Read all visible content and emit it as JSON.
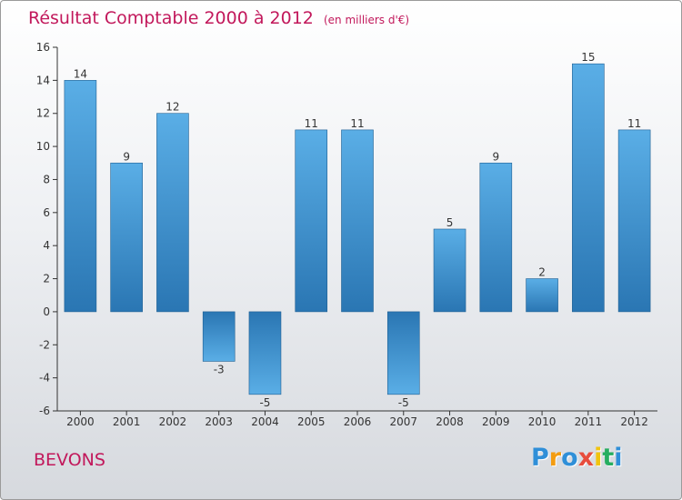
{
  "header": {
    "title": "Résultat Comptable 2000 à 2012",
    "subtitle": "(en milliers d'€)"
  },
  "footer": {
    "place": "BEVONS",
    "brand": "Proxiti",
    "brand_letters": [
      "P",
      "r",
      "o",
      "x",
      "i",
      "t",
      "i"
    ],
    "brand_colors": [
      "#2f8fd8",
      "#f39c12",
      "#2f8fd8",
      "#e74c3c",
      "#f1c40f",
      "#27ae60",
      "#2f8fd8"
    ]
  },
  "colors": {
    "title": "#c2185b",
    "bar_light": "#5aaee6",
    "bar_dark": "#2a7ab8",
    "axis": "#333333"
  },
  "chart_data": {
    "type": "bar",
    "title": "Résultat Comptable 2000 à 2012",
    "subtitle": "(en milliers d'€)",
    "categories": [
      "2000",
      "2001",
      "2002",
      "2003",
      "2004",
      "2005",
      "2006",
      "2007",
      "2008",
      "2009",
      "2010",
      "2011",
      "2012"
    ],
    "values": [
      14,
      9,
      12,
      -3,
      -5,
      11,
      11,
      -5,
      5,
      9,
      2,
      15,
      11
    ],
    "yticks": [
      -6,
      -4,
      -2,
      0,
      2,
      4,
      6,
      8,
      10,
      12,
      14,
      16
    ],
    "ylim": [
      -6,
      16
    ],
    "xlabel": "",
    "ylabel": "",
    "grid": false,
    "legend": "none"
  }
}
